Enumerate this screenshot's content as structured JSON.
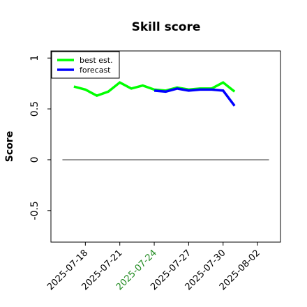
{
  "chart_data": {
    "type": "line",
    "title": "Skill score",
    "ylabel": "Score",
    "x": [
      "2025-07-17",
      "2025-07-18",
      "2025-07-19",
      "2025-07-20",
      "2025-07-21",
      "2025-07-22",
      "2025-07-23",
      "2025-07-24",
      "2025-07-25",
      "2025-07-26",
      "2025-07-27",
      "2025-07-28",
      "2025-07-29",
      "2025-07-30",
      "2025-07-31"
    ],
    "series": [
      {
        "name": "best est.",
        "color": "#00ff00",
        "values": [
          0.72,
          0.69,
          0.63,
          0.67,
          0.76,
          0.7,
          0.73,
          0.69,
          0.68,
          0.71,
          0.69,
          0.7,
          0.7,
          0.76,
          0.67
        ]
      },
      {
        "name": "forecast",
        "color": "#0000ff",
        "values": [
          null,
          null,
          null,
          null,
          null,
          null,
          null,
          0.68,
          0.67,
          0.7,
          0.68,
          0.69,
          0.69,
          0.68,
          0.53
        ]
      }
    ],
    "hline": {
      "y": 0,
      "x": [
        "2025-07-16",
        "2025-08-03"
      ],
      "color": "#333333"
    },
    "xlim": [
      "2025-07-15",
      "2025-08-04"
    ],
    "ylim": [
      -0.81,
      1.07
    ],
    "xticks": [
      "2025-07-18",
      "2025-07-21",
      "2025-07-24",
      "2025-07-27",
      "2025-07-30",
      "2025-08-02"
    ],
    "yticks": [
      -0.5,
      0.0,
      0.5,
      1.0
    ],
    "highlight_date": "2025-07-24",
    "highlight_color": "#228b22",
    "legend": "upper left"
  }
}
